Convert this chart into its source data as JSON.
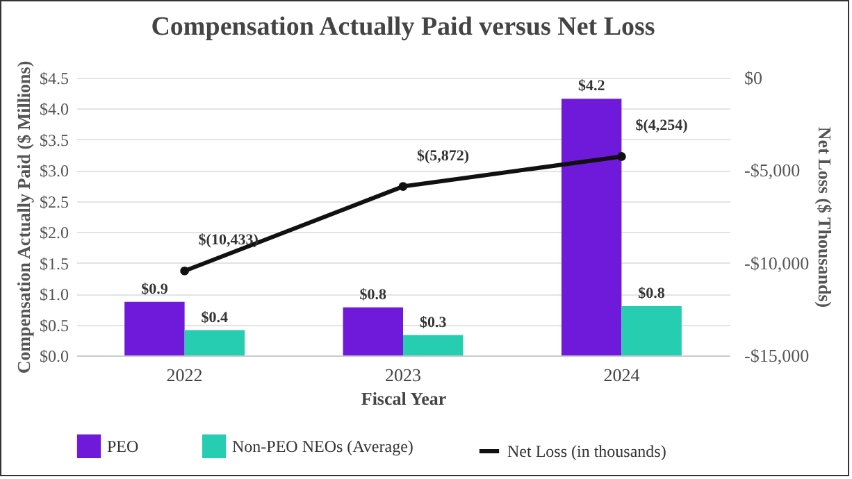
{
  "chart_data": {
    "type": "bar",
    "title": "Compensation Actually Paid versus Net Loss",
    "xlabel": "Fiscal Year",
    "ylabel": "Compensation Actually Paid ($ Millions)",
    "y2label": "Net Loss ($ Thousands)",
    "categories": [
      "2022",
      "2023",
      "2024"
    ],
    "series": [
      {
        "name": "PEO",
        "color": "#6f1adb",
        "values": [
          0.87,
          0.78,
          4.16
        ],
        "value_labels": [
          "$0.9",
          "$0.8",
          "$4.2"
        ]
      },
      {
        "name": "Non-PEO NEOs (Average)",
        "color": "#27cdb0",
        "values": [
          0.41,
          0.33,
          0.8
        ],
        "value_labels": [
          "$0.4",
          "$0.3",
          "$0.8"
        ]
      },
      {
        "name": "Net Loss (in thousands)",
        "type": "line",
        "axis": "y2",
        "color": "#111111",
        "marker": "circle",
        "values": [
          -10433,
          -5872,
          -4254
        ],
        "value_labels": [
          "$(10,433)",
          "$(5,872)",
          "$(4,254)"
        ]
      }
    ],
    "ylim": [
      0,
      4.5
    ],
    "yticks": [
      {
        "value": 0,
        "label": "$0.0"
      },
      {
        "value": 0.5,
        "label": "$0.5"
      },
      {
        "value": 1,
        "label": "$1.0"
      },
      {
        "value": 1.5,
        "label": "$1.5"
      },
      {
        "value": 2,
        "label": "$2.0"
      },
      {
        "value": 2.5,
        "label": "$2.5"
      },
      {
        "value": 3,
        "label": "$3.0"
      },
      {
        "value": 3.5,
        "label": "$3.5"
      },
      {
        "value": 4,
        "label": "$4.0"
      },
      {
        "value": 4.5,
        "label": "$4.5"
      }
    ],
    "y2lim": [
      -15000,
      0
    ],
    "y2ticks": [
      {
        "value": -15000,
        "label": "-$15,000"
      },
      {
        "value": -10000,
        "label": "-$10,000"
      },
      {
        "value": -5000,
        "label": "-$5,000"
      },
      {
        "value": 0,
        "label": "$0"
      }
    ],
    "grid": "y",
    "legend": "bottom"
  }
}
